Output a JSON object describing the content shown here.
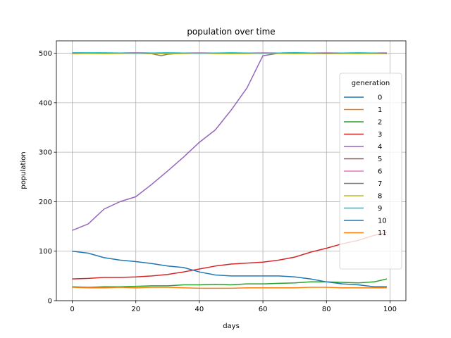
{
  "chart_data": {
    "type": "line",
    "title": "population over time",
    "xlabel": "days",
    "ylabel": "population",
    "xlim": [
      -5,
      105
    ],
    "ylim": [
      0,
      525
    ],
    "xticks": [
      0,
      20,
      40,
      60,
      80,
      100
    ],
    "yticks": [
      0,
      100,
      200,
      300,
      400,
      500
    ],
    "grid": true,
    "legend": {
      "title": "generation",
      "placement": "center-right"
    },
    "series": [
      {
        "name": "0",
        "color": "#1f77b4",
        "points": [
          [
            0,
            500
          ],
          [
            10,
            500
          ],
          [
            20,
            501
          ],
          [
            30,
            500
          ],
          [
            40,
            500
          ],
          [
            50,
            500
          ],
          [
            60,
            500
          ],
          [
            70,
            501
          ],
          [
            80,
            500
          ],
          [
            90,
            500
          ],
          [
            99,
            500
          ]
        ]
      },
      {
        "name": "1",
        "color": "#ff7f0e",
        "points": [
          [
            0,
            499
          ],
          [
            10,
            500
          ],
          [
            20,
            500
          ],
          [
            30,
            499
          ],
          [
            40,
            500
          ],
          [
            50,
            499
          ],
          [
            60,
            500
          ],
          [
            70,
            500
          ],
          [
            80,
            499
          ],
          [
            90,
            500
          ],
          [
            99,
            499
          ]
        ]
      },
      {
        "name": "2",
        "color": "#2ca02c",
        "points": [
          [
            0,
            28
          ],
          [
            5,
            27
          ],
          [
            10,
            28
          ],
          [
            15,
            28
          ],
          [
            20,
            29
          ],
          [
            25,
            30
          ],
          [
            30,
            30
          ],
          [
            35,
            32
          ],
          [
            40,
            32
          ],
          [
            45,
            33
          ],
          [
            50,
            32
          ],
          [
            55,
            34
          ],
          [
            60,
            34
          ],
          [
            65,
            35
          ],
          [
            70,
            36
          ],
          [
            75,
            38
          ],
          [
            80,
            38
          ],
          [
            85,
            37
          ],
          [
            90,
            36
          ],
          [
            95,
            38
          ],
          [
            99,
            44
          ]
        ]
      },
      {
        "name": "3",
        "color": "#d62728",
        "points": [
          [
            0,
            44
          ],
          [
            5,
            45
          ],
          [
            10,
            47
          ],
          [
            15,
            47
          ],
          [
            20,
            48
          ],
          [
            25,
            50
          ],
          [
            30,
            53
          ],
          [
            35,
            58
          ],
          [
            40,
            64
          ],
          [
            45,
            70
          ],
          [
            50,
            74
          ],
          [
            55,
            76
          ],
          [
            60,
            78
          ],
          [
            65,
            82
          ],
          [
            70,
            88
          ],
          [
            75,
            98
          ],
          [
            80,
            106
          ],
          [
            85,
            115
          ],
          [
            90,
            122
          ],
          [
            95,
            132
          ],
          [
            99,
            138
          ]
        ]
      },
      {
        "name": "4",
        "color": "#9467bd",
        "points": [
          [
            0,
            142
          ],
          [
            5,
            155
          ],
          [
            10,
            185
          ],
          [
            15,
            200
          ],
          [
            20,
            210
          ],
          [
            25,
            235
          ],
          [
            30,
            262
          ],
          [
            35,
            290
          ],
          [
            40,
            320
          ],
          [
            45,
            345
          ],
          [
            50,
            385
          ],
          [
            55,
            430
          ],
          [
            60,
            495
          ],
          [
            65,
            500
          ],
          [
            70,
            500
          ],
          [
            80,
            500
          ],
          [
            90,
            500
          ],
          [
            99,
            500
          ]
        ]
      },
      {
        "name": "5",
        "color": "#8c564b",
        "points": [
          [
            0,
            500
          ],
          [
            10,
            500
          ],
          [
            20,
            500
          ],
          [
            30,
            500
          ],
          [
            40,
            500
          ],
          [
            50,
            500
          ],
          [
            60,
            500
          ],
          [
            70,
            500
          ],
          [
            80,
            500
          ],
          [
            90,
            500
          ],
          [
            99,
            500
          ]
        ]
      },
      {
        "name": "6",
        "color": "#e377c2",
        "points": [
          [
            0,
            501
          ],
          [
            10,
            500
          ],
          [
            20,
            501
          ],
          [
            30,
            500
          ],
          [
            40,
            501
          ],
          [
            50,
            500
          ],
          [
            60,
            501
          ],
          [
            70,
            500
          ],
          [
            80,
            501
          ],
          [
            90,
            500
          ],
          [
            99,
            501
          ]
        ]
      },
      {
        "name": "7",
        "color": "#7f7f7f",
        "points": [
          [
            0,
            500
          ],
          [
            10,
            500
          ],
          [
            20,
            500
          ],
          [
            25,
            499
          ],
          [
            28,
            495
          ],
          [
            30,
            498
          ],
          [
            35,
            500
          ],
          [
            50,
            500
          ],
          [
            70,
            500
          ],
          [
            90,
            500
          ],
          [
            99,
            500
          ]
        ]
      },
      {
        "name": "8",
        "color": "#bcbd22",
        "points": [
          [
            0,
            500
          ],
          [
            10,
            499
          ],
          [
            20,
            500
          ],
          [
            30,
            499
          ],
          [
            40,
            500
          ],
          [
            50,
            499
          ],
          [
            60,
            500
          ],
          [
            70,
            499
          ],
          [
            80,
            500
          ],
          [
            90,
            499
          ],
          [
            99,
            500
          ]
        ]
      },
      {
        "name": "9",
        "color": "#17becf",
        "points": [
          [
            0,
            501
          ],
          [
            10,
            501
          ],
          [
            20,
            500
          ],
          [
            30,
            501
          ],
          [
            40,
            500
          ],
          [
            50,
            501
          ],
          [
            60,
            500
          ],
          [
            70,
            501
          ],
          [
            80,
            500
          ],
          [
            90,
            501
          ],
          [
            99,
            500
          ]
        ]
      },
      {
        "name": "10",
        "color": "#1f77b4",
        "points": [
          [
            0,
            100
          ],
          [
            5,
            96
          ],
          [
            10,
            87
          ],
          [
            15,
            82
          ],
          [
            20,
            79
          ],
          [
            25,
            75
          ],
          [
            30,
            70
          ],
          [
            35,
            67
          ],
          [
            40,
            58
          ],
          [
            45,
            52
          ],
          [
            50,
            50
          ],
          [
            55,
            50
          ],
          [
            60,
            50
          ],
          [
            65,
            50
          ],
          [
            70,
            48
          ],
          [
            75,
            44
          ],
          [
            80,
            38
          ],
          [
            85,
            34
          ],
          [
            90,
            32
          ],
          [
            95,
            28
          ],
          [
            99,
            28
          ]
        ]
      },
      {
        "name": "11",
        "color": "#ff7f0e",
        "points": [
          [
            0,
            27
          ],
          [
            5,
            26
          ],
          [
            10,
            26
          ],
          [
            15,
            27
          ],
          [
            20,
            26
          ],
          [
            25,
            27
          ],
          [
            30,
            27
          ],
          [
            35,
            26
          ],
          [
            40,
            25
          ],
          [
            45,
            25
          ],
          [
            50,
            25
          ],
          [
            55,
            26
          ],
          [
            60,
            26
          ],
          [
            65,
            26
          ],
          [
            70,
            26
          ],
          [
            75,
            27
          ],
          [
            80,
            27
          ],
          [
            85,
            26
          ],
          [
            90,
            26
          ],
          [
            95,
            26
          ],
          [
            99,
            26
          ]
        ]
      }
    ]
  }
}
